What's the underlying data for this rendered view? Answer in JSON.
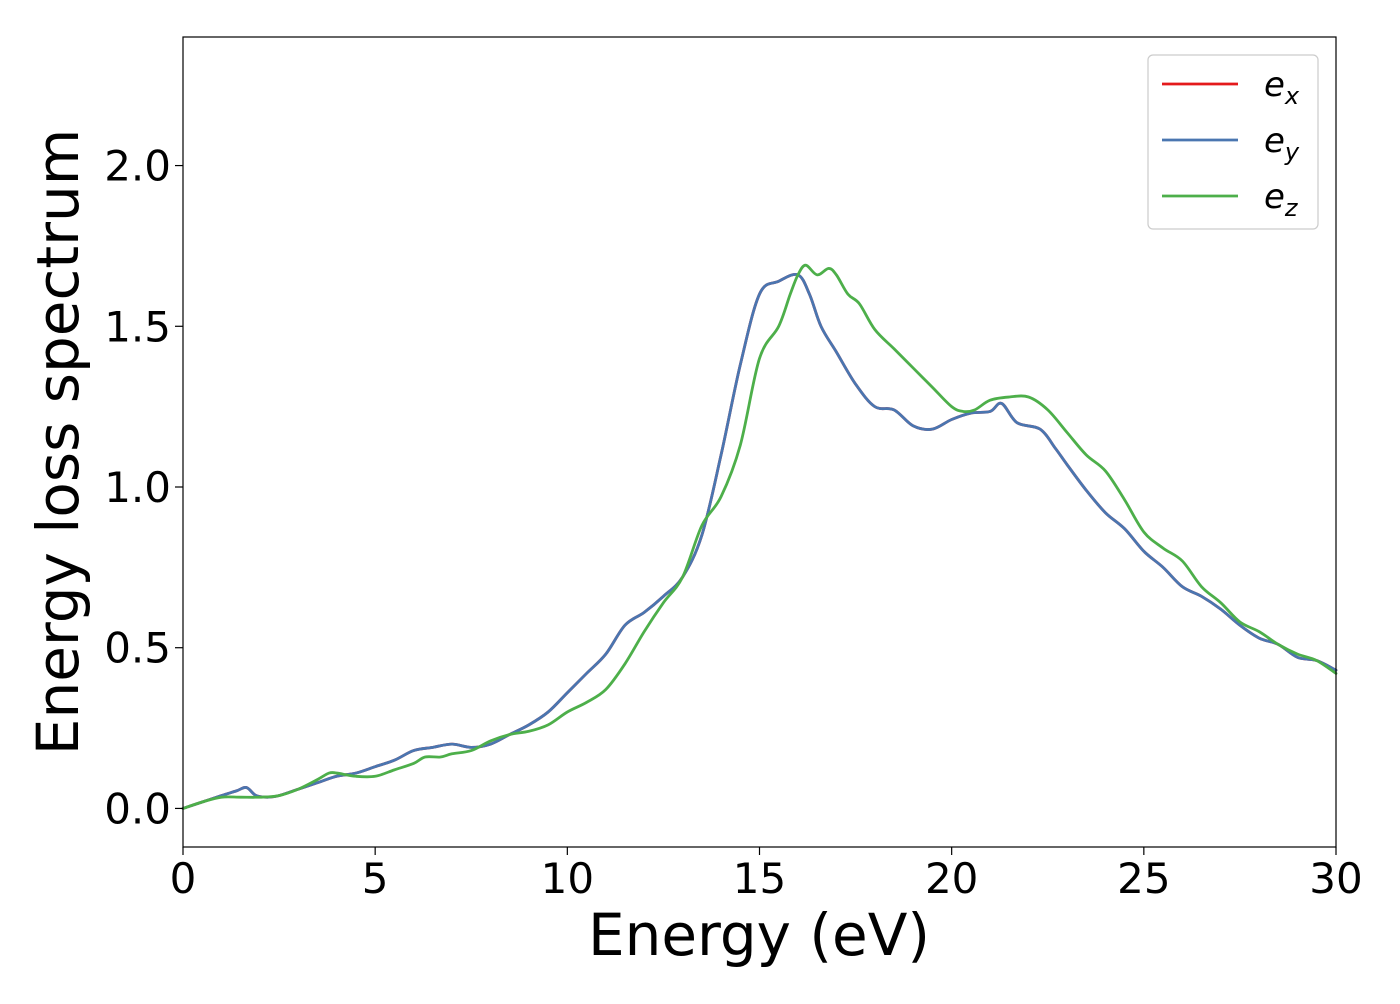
{
  "chart_data": {
    "type": "line",
    "xlabel": "Energy (eV)",
    "ylabel": "Energy loss spectrum",
    "xlim": [
      0,
      30
    ],
    "ylim": [
      -0.12,
      2.4
    ],
    "xticks": [
      0,
      5,
      10,
      15,
      20,
      25,
      30
    ],
    "xtick_labels": [
      "0",
      "5",
      "10",
      "15",
      "20",
      "25",
      "30"
    ],
    "yticks": [
      0.0,
      0.5,
      1.0,
      1.5,
      2.0
    ],
    "ytick_labels": [
      "0.0",
      "0.5",
      "1.0",
      "1.5",
      "2.0"
    ],
    "grid": false,
    "legend_position": "top-right",
    "series": [
      {
        "name": "e_x",
        "legend_base": "e",
        "legend_sub": "x",
        "color": "#e41a1c",
        "x": [
          0,
          0.5,
          1.0,
          1.4,
          1.65,
          1.9,
          2.2,
          2.5,
          3.0,
          3.5,
          4.0,
          4.5,
          5.0,
          5.5,
          6.0,
          6.5,
          7.0,
          7.5,
          8.0,
          8.5,
          9.0,
          9.5,
          10.0,
          10.5,
          11.0,
          11.5,
          12.0,
          12.5,
          13.0,
          13.5,
          14.0,
          14.5,
          15.0,
          15.5,
          16.0,
          16.3,
          16.6,
          17.0,
          17.5,
          18.0,
          18.5,
          19.0,
          19.5,
          20.0,
          20.5,
          21.0,
          21.3,
          21.7,
          22.3,
          22.7,
          23.0,
          23.5,
          24.0,
          24.5,
          25.0,
          25.5,
          26.0,
          26.5,
          27.0,
          27.5,
          28.0,
          28.5,
          29.0,
          29.5,
          30.0
        ],
        "values": [
          0.0,
          0.02,
          0.04,
          0.055,
          0.065,
          0.04,
          0.035,
          0.04,
          0.06,
          0.08,
          0.1,
          0.11,
          0.13,
          0.15,
          0.18,
          0.19,
          0.2,
          0.19,
          0.2,
          0.23,
          0.26,
          0.3,
          0.36,
          0.42,
          0.48,
          0.57,
          0.61,
          0.66,
          0.72,
          0.85,
          1.1,
          1.38,
          1.6,
          1.64,
          1.66,
          1.6,
          1.5,
          1.42,
          1.32,
          1.25,
          1.24,
          1.19,
          1.18,
          1.21,
          1.23,
          1.235,
          1.26,
          1.2,
          1.18,
          1.12,
          1.07,
          0.99,
          0.92,
          0.87,
          0.8,
          0.75,
          0.69,
          0.66,
          0.62,
          0.57,
          0.53,
          0.51,
          0.47,
          0.46,
          0.43
        ]
      },
      {
        "name": "e_y",
        "legend_base": "e",
        "legend_sub": "y",
        "color": "#4a76b0",
        "x": [
          0,
          0.5,
          1.0,
          1.4,
          1.65,
          1.9,
          2.2,
          2.5,
          3.0,
          3.5,
          4.0,
          4.5,
          5.0,
          5.5,
          6.0,
          6.5,
          7.0,
          7.5,
          8.0,
          8.5,
          9.0,
          9.5,
          10.0,
          10.5,
          11.0,
          11.5,
          12.0,
          12.5,
          13.0,
          13.5,
          14.0,
          14.5,
          15.0,
          15.5,
          16.0,
          16.3,
          16.6,
          17.0,
          17.5,
          18.0,
          18.5,
          19.0,
          19.5,
          20.0,
          20.5,
          21.0,
          21.3,
          21.7,
          22.3,
          22.7,
          23.0,
          23.5,
          24.0,
          24.5,
          25.0,
          25.5,
          26.0,
          26.5,
          27.0,
          27.5,
          28.0,
          28.5,
          29.0,
          29.5,
          30.0
        ],
        "values": [
          0.0,
          0.02,
          0.04,
          0.055,
          0.065,
          0.04,
          0.035,
          0.04,
          0.06,
          0.08,
          0.1,
          0.11,
          0.13,
          0.15,
          0.18,
          0.19,
          0.2,
          0.19,
          0.2,
          0.23,
          0.26,
          0.3,
          0.36,
          0.42,
          0.48,
          0.57,
          0.61,
          0.66,
          0.72,
          0.85,
          1.1,
          1.38,
          1.6,
          1.64,
          1.66,
          1.6,
          1.5,
          1.42,
          1.32,
          1.25,
          1.24,
          1.19,
          1.18,
          1.21,
          1.23,
          1.235,
          1.26,
          1.2,
          1.18,
          1.12,
          1.07,
          0.99,
          0.92,
          0.87,
          0.8,
          0.75,
          0.69,
          0.66,
          0.62,
          0.57,
          0.53,
          0.51,
          0.47,
          0.46,
          0.43
        ]
      },
      {
        "name": "e_z",
        "legend_base": "e",
        "legend_sub": "z",
        "color": "#4daf4a",
        "x": [
          0,
          0.5,
          1.0,
          1.5,
          2.0,
          2.5,
          3.0,
          3.5,
          3.8,
          4.0,
          4.5,
          5.0,
          5.5,
          6.0,
          6.3,
          6.7,
          7.0,
          7.5,
          8.0,
          8.5,
          9.0,
          9.5,
          10.0,
          10.5,
          11.0,
          11.5,
          12.0,
          12.5,
          13.0,
          13.5,
          14.0,
          14.5,
          15.0,
          15.5,
          15.8,
          16.0,
          16.2,
          16.5,
          16.8,
          17.0,
          17.3,
          17.6,
          18.0,
          18.5,
          19.0,
          19.5,
          20.0,
          20.3,
          20.6,
          21.0,
          21.5,
          22.0,
          22.5,
          23.0,
          23.5,
          24.0,
          24.5,
          25.0,
          25.5,
          26.0,
          26.5,
          27.0,
          27.5,
          28.0,
          28.5,
          29.0,
          29.5,
          30.0
        ],
        "values": [
          0.0,
          0.02,
          0.035,
          0.035,
          0.035,
          0.04,
          0.06,
          0.09,
          0.11,
          0.11,
          0.1,
          0.1,
          0.12,
          0.14,
          0.16,
          0.16,
          0.17,
          0.18,
          0.21,
          0.23,
          0.24,
          0.26,
          0.3,
          0.33,
          0.37,
          0.45,
          0.55,
          0.64,
          0.72,
          0.88,
          0.97,
          1.13,
          1.4,
          1.5,
          1.6,
          1.66,
          1.69,
          1.66,
          1.68,
          1.66,
          1.6,
          1.57,
          1.49,
          1.43,
          1.37,
          1.31,
          1.25,
          1.235,
          1.24,
          1.27,
          1.28,
          1.28,
          1.24,
          1.17,
          1.1,
          1.05,
          0.96,
          0.86,
          0.81,
          0.77,
          0.69,
          0.64,
          0.58,
          0.55,
          0.51,
          0.48,
          0.46,
          0.42
        ]
      }
    ]
  }
}
